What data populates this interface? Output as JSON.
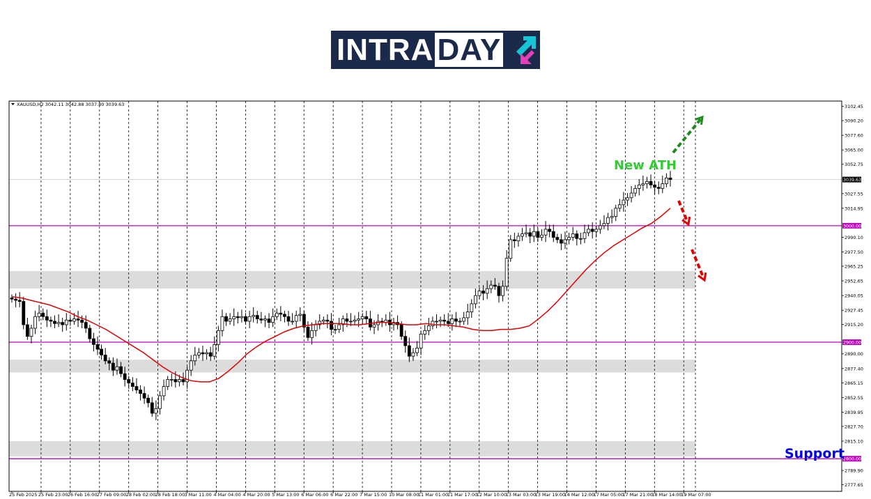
{
  "logo": {
    "text": "INTRADAY",
    "text_main": "INTRA",
    "text_accent": "DAY",
    "background_color": "#1b2a4a",
    "arrow_up_color": "#19c3d6",
    "arrow_down_color": "#e33fb8"
  },
  "chart_data": {
    "type": "candlestick",
    "symbol_info": "XAUUSD,H2 3042.11 3042.88 3037.80 3039.63",
    "y_ticks": [
      "3102.45",
      "3090.20",
      "3077.60",
      "3065.00",
      "3052.75",
      "3027.55",
      "3014.95",
      "2990.10",
      "2977.50",
      "2965.25",
      "2952.65",
      "2940.05",
      "2927.45",
      "2915.20",
      "2890.00",
      "2877.40",
      "2865.15",
      "2852.55",
      "2839.95",
      "2827.70",
      "2815.10",
      "2789.90",
      "2777.65"
    ],
    "ylim": [
      2772,
      3107
    ],
    "x_ticks": [
      "25 Feb 2025",
      "25 Feb 23:00",
      "26 Feb 16:00",
      "27 Feb 09:00",
      "28 Feb 02:00",
      "28 Feb 18:00",
      "3 Mar 11:00",
      "4 Mar 04:00",
      "4 Mar 20:00",
      "5 Mar 13:00",
      "6 Mar 06:00",
      "6 Mar 22:00",
      "7 Mar 15:00",
      "10 Mar 08:00",
      "11 Mar 01:00",
      "11 Mar 17:00",
      "12 Mar 10:00",
      "13 Mar 03:00",
      "13 Mar 19:00",
      "14 Mar 12:00",
      "17 Mar 05:00",
      "17 Mar 21:00",
      "18 Mar 14:00",
      "19 Mar 07:00"
    ],
    "current_price": 3039.63,
    "current_price_label": "3039.63",
    "horizontal_levels": [
      {
        "value": 3000.0,
        "label": "3000.00"
      },
      {
        "value": 2900.0,
        "label": "2900.00"
      },
      {
        "value": 2800.0,
        "label": "2800.00"
      }
    ],
    "zones": [
      {
        "from": 2946,
        "to": 2961
      },
      {
        "from": 2874,
        "to": 2885
      },
      {
        "from": 2802,
        "to": 2815
      }
    ],
    "close_series": [
      2937,
      2936,
      2935,
      2915,
      2905,
      2912,
      2922,
      2925,
      2922,
      2919,
      2918,
      2916,
      2917,
      2915,
      2919,
      2918,
      2920,
      2919,
      2917,
      2912,
      2903,
      2898,
      2894,
      2889,
      2884,
      2882,
      2876,
      2879,
      2873,
      2868,
      2865,
      2862,
      2859,
      2856,
      2852,
      2848,
      2839,
      2843,
      2854,
      2862,
      2868,
      2868,
      2866,
      2868,
      2866,
      2876,
      2884,
      2889,
      2891,
      2890,
      2891,
      2888,
      2898,
      2910,
      2922,
      2918,
      2920,
      2922,
      2921,
      2922,
      2918,
      2922,
      2923,
      2920,
      2919,
      2920,
      2917,
      2922,
      2925,
      2924,
      2922,
      2918,
      2918,
      2923,
      2924,
      2913,
      2904,
      2910,
      2915,
      2918,
      2919,
      2918,
      2911,
      2911,
      2915,
      2920,
      2918,
      2918,
      2919,
      2920,
      2922,
      2920,
      2913,
      2915,
      2918,
      2917,
      2919,
      2915,
      2917,
      2915,
      2905,
      2897,
      2888,
      2891,
      2895,
      2907,
      2910,
      2914,
      2918,
      2918,
      2919,
      2918,
      2916,
      2920,
      2918,
      2918,
      2921,
      2926,
      2933,
      2940,
      2944,
      2942,
      2946,
      2949,
      2948,
      2940,
      2948,
      2972,
      2988,
      2987,
      2991,
      2993,
      2994,
      2991,
      2995,
      2990,
      2992,
      2997,
      2995,
      2990,
      2988,
      2985,
      2988,
      2990,
      2993,
      2989,
      2989,
      2994,
      2997,
      2995,
      2997,
      3000,
      3002,
      3007,
      3008,
      3015,
      3018,
      3022,
      3024,
      3028,
      3032,
      3035,
      3036,
      3038,
      3035,
      3033,
      3032,
      3036,
      3041,
      3039.63
    ],
    "ma_series": [
      2939,
      2938,
      2936,
      2934,
      2932,
      2929,
      2926,
      2922,
      2919,
      2915,
      2911,
      2906,
      2901,
      2896,
      2891,
      2885,
      2879,
      2874,
      2870,
      2867,
      2866,
      2866,
      2869,
      2875,
      2882,
      2890,
      2896,
      2901,
      2905,
      2909,
      2912,
      2914,
      2915,
      2916,
      2916,
      2916,
      2915,
      2915,
      2916,
      2917,
      2917,
      2916,
      2915,
      2915,
      2916,
      2915,
      2915,
      2914,
      2913,
      2911,
      2910,
      2910,
      2911,
      2911,
      2912,
      2914,
      2920,
      2927,
      2935,
      2944,
      2953,
      2962,
      2970,
      2977,
      2983,
      2988,
      2993,
      2998,
      3002,
      3008,
      3015
    ],
    "annotations": [
      {
        "text": "New ATH",
        "color": "#33cc33"
      },
      {
        "text": "Support",
        "color": "#0000ee"
      }
    ],
    "colors": {
      "candle": "#000000",
      "ma": "#e00000",
      "level": "#c000c0",
      "zone": "#dcdcdc",
      "arrow_up": "#1e8a1e",
      "arrow_down": "#e00000"
    }
  }
}
